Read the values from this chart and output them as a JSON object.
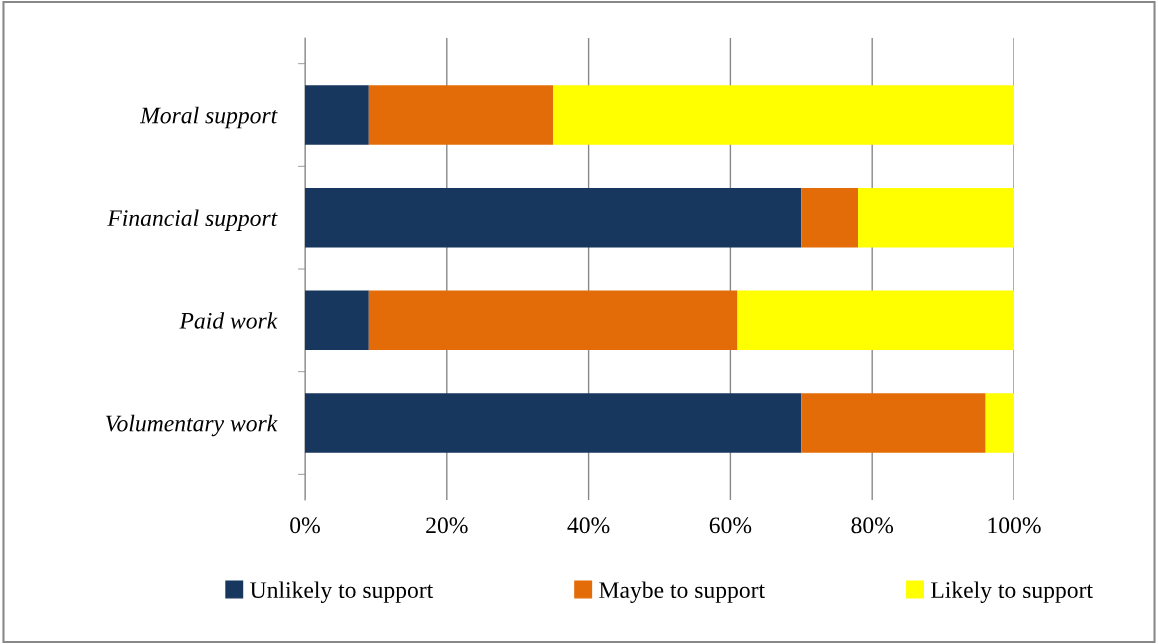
{
  "chart_data": {
    "type": "bar",
    "orientation": "horizontal",
    "stacked": true,
    "categories": [
      "Moral support",
      "Financial support",
      "Paid work",
      "Volumentary work"
    ],
    "series": [
      {
        "name": "Unlikely to support",
        "color": "#17375e",
        "values": [
          9,
          70,
          9,
          70
        ]
      },
      {
        "name": "Maybe to support",
        "color": "#e36c09",
        "values": [
          26,
          8,
          52,
          26
        ]
      },
      {
        "name": "Likely to support",
        "color": "#ffff00",
        "values": [
          65,
          22,
          39,
          4
        ]
      }
    ],
    "xlim": [
      0,
      100
    ],
    "xticks": [
      {
        "value": 0,
        "label": "0%"
      },
      {
        "value": 20,
        "label": "20%"
      },
      {
        "value": 40,
        "label": "40%"
      },
      {
        "value": 60,
        "label": "60%"
      },
      {
        "value": 80,
        "label": "80%"
      },
      {
        "value": 100,
        "label": "100%"
      }
    ],
    "grid": "x",
    "legend": "bottom"
  }
}
